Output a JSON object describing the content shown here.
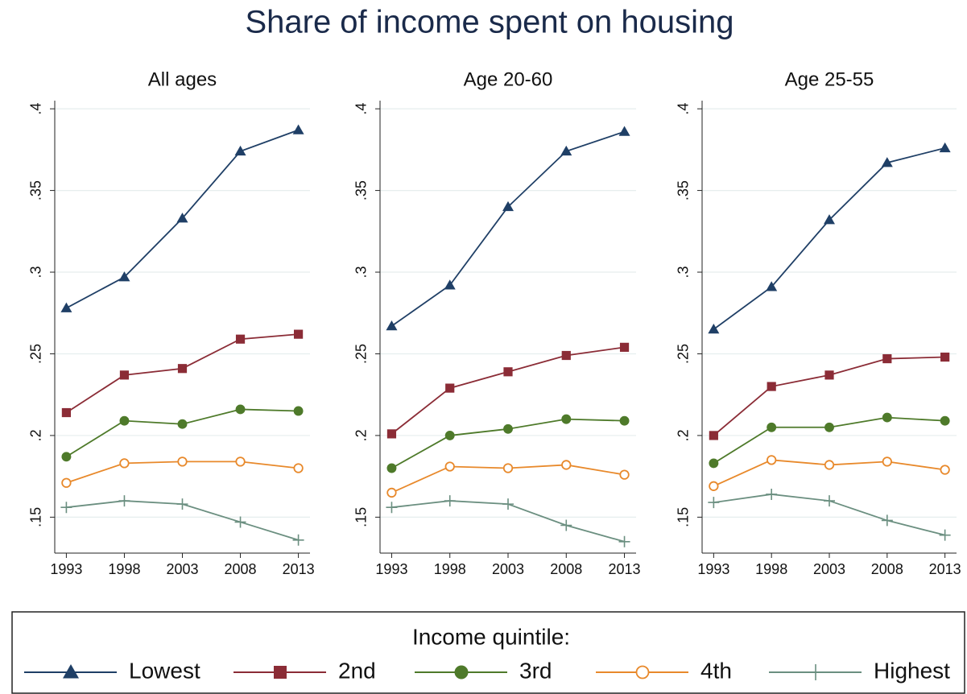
{
  "title": "Share of income spent on housing",
  "legend": {
    "title": "Income quintile:"
  },
  "chart_data": [
    {
      "type": "line",
      "title": "All ages",
      "x": [
        1993,
        1998,
        2003,
        2008,
        2013
      ],
      "xlim": [
        1992,
        2014
      ],
      "xticks": [
        1993,
        1998,
        2003,
        2008,
        2013
      ],
      "ylim": [
        0.128,
        0.405
      ],
      "yticks": [
        {
          "value": 0.15,
          "label": ".15"
        },
        {
          "value": 0.2,
          "label": ".2"
        },
        {
          "value": 0.25,
          "label": ".25"
        },
        {
          "value": 0.3,
          "label": ".3"
        },
        {
          "value": 0.35,
          "label": ".35"
        },
        {
          "value": 0.4,
          "label": ".4"
        }
      ],
      "grid": true,
      "series": [
        {
          "name": "Lowest",
          "color": "#1f3f66",
          "marker": "triangle",
          "values": [
            0.278,
            0.297,
            0.333,
            0.374,
            0.387
          ]
        },
        {
          "name": "2nd",
          "color": "#8b2c36",
          "marker": "square",
          "values": [
            0.214,
            0.237,
            0.241,
            0.259,
            0.262
          ]
        },
        {
          "name": "3rd",
          "color": "#4e7a2a",
          "marker": "circle",
          "values": [
            0.187,
            0.209,
            0.207,
            0.216,
            0.215
          ]
        },
        {
          "name": "4th",
          "color": "#e8892b",
          "marker": "hollow-circle",
          "values": [
            0.171,
            0.183,
            0.184,
            0.184,
            0.18
          ]
        },
        {
          "name": "Highest",
          "color": "#6b8f80",
          "marker": "plus",
          "values": [
            0.156,
            0.16,
            0.158,
            0.147,
            0.136
          ]
        }
      ]
    },
    {
      "type": "line",
      "title": "Age 20-60",
      "x": [
        1993,
        1998,
        2003,
        2008,
        2013
      ],
      "xlim": [
        1992,
        2014
      ],
      "xticks": [
        1993,
        1998,
        2003,
        2008,
        2013
      ],
      "ylim": [
        0.128,
        0.405
      ],
      "yticks": [
        {
          "value": 0.15,
          "label": ".15"
        },
        {
          "value": 0.2,
          "label": ".2"
        },
        {
          "value": 0.25,
          "label": ".25"
        },
        {
          "value": 0.3,
          "label": ".3"
        },
        {
          "value": 0.35,
          "label": ".35"
        },
        {
          "value": 0.4,
          "label": ".4"
        }
      ],
      "grid": true,
      "series": [
        {
          "name": "Lowest",
          "color": "#1f3f66",
          "marker": "triangle",
          "values": [
            0.267,
            0.292,
            0.34,
            0.374,
            0.386
          ]
        },
        {
          "name": "2nd",
          "color": "#8b2c36",
          "marker": "square",
          "values": [
            0.201,
            0.229,
            0.239,
            0.249,
            0.254
          ]
        },
        {
          "name": "3rd",
          "color": "#4e7a2a",
          "marker": "circle",
          "values": [
            0.18,
            0.2,
            0.204,
            0.21,
            0.209
          ]
        },
        {
          "name": "4th",
          "color": "#e8892b",
          "marker": "hollow-circle",
          "values": [
            0.165,
            0.181,
            0.18,
            0.182,
            0.176
          ]
        },
        {
          "name": "Highest",
          "color": "#6b8f80",
          "marker": "plus",
          "values": [
            0.156,
            0.16,
            0.158,
            0.145,
            0.135
          ]
        }
      ]
    },
    {
      "type": "line",
      "title": "Age 25-55",
      "x": [
        1993,
        1998,
        2003,
        2008,
        2013
      ],
      "xlim": [
        1992,
        2014
      ],
      "xticks": [
        1993,
        1998,
        2003,
        2008,
        2013
      ],
      "ylim": [
        0.128,
        0.405
      ],
      "yticks": [
        {
          "value": 0.15,
          "label": ".15"
        },
        {
          "value": 0.2,
          "label": ".2"
        },
        {
          "value": 0.25,
          "label": ".25"
        },
        {
          "value": 0.3,
          "label": ".3"
        },
        {
          "value": 0.35,
          "label": ".35"
        },
        {
          "value": 0.4,
          "label": ".4"
        }
      ],
      "grid": true,
      "series": [
        {
          "name": "Lowest",
          "color": "#1f3f66",
          "marker": "triangle",
          "values": [
            0.265,
            0.291,
            0.332,
            0.367,
            0.376
          ]
        },
        {
          "name": "2nd",
          "color": "#8b2c36",
          "marker": "square",
          "values": [
            0.2,
            0.23,
            0.237,
            0.247,
            0.248
          ]
        },
        {
          "name": "3rd",
          "color": "#4e7a2a",
          "marker": "circle",
          "values": [
            0.183,
            0.205,
            0.205,
            0.211,
            0.209
          ]
        },
        {
          "name": "4th",
          "color": "#e8892b",
          "marker": "hollow-circle",
          "values": [
            0.169,
            0.185,
            0.182,
            0.184,
            0.179
          ]
        },
        {
          "name": "Highest",
          "color": "#6b8f80",
          "marker": "plus",
          "values": [
            0.159,
            0.164,
            0.16,
            0.148,
            0.139
          ]
        }
      ]
    }
  ]
}
